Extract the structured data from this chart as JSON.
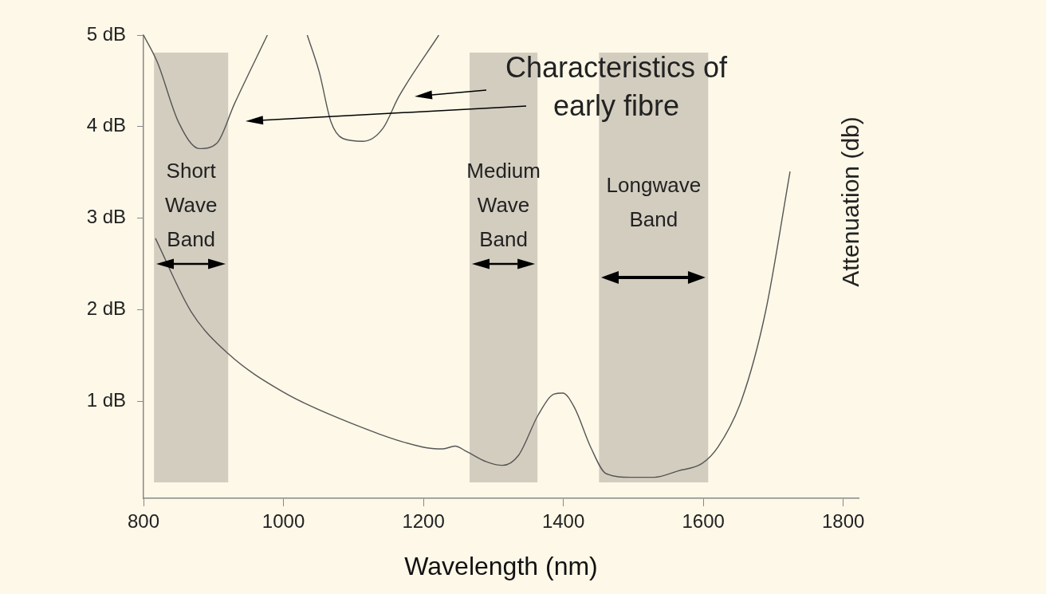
{
  "chart_data": {
    "type": "line",
    "xlabel": "Wavelength (nm)",
    "ylabel": "Attenuation (db)",
    "xlim": [
      800,
      1822
    ],
    "xticks": [
      800,
      1000,
      1200,
      1400,
      1600,
      1800
    ],
    "ylim": [
      -0.06,
      5
    ],
    "yticks": [
      {
        "value": 1,
        "label": "1 dB"
      },
      {
        "value": 2,
        "label": "2 dB"
      },
      {
        "value": 3,
        "label": "3 dB"
      },
      {
        "value": 4,
        "label": "4 dB"
      },
      {
        "value": 5,
        "label": "5 dB"
      }
    ],
    "grid": false,
    "legend": false,
    "marker": "none",
    "line_style": "solid",
    "series": [
      {
        "color": "#555555",
        "x": [
          800,
          820,
          850,
          880,
          905,
          930,
          977
        ],
        "values": [
          5.0,
          4.7,
          4.05,
          3.76,
          3.82,
          4.25,
          5.0
        ]
      },
      {
        "color": "#555555",
        "x": [
          1034,
          1051,
          1068,
          1085,
          1114,
          1142,
          1165,
          1222
        ],
        "values": [
          5.0,
          4.6,
          4.05,
          3.87,
          3.84,
          3.98,
          4.33,
          5.0
        ]
      },
      {
        "color": "#555555",
        "x": [
          817,
          868,
          921,
          1000,
          1097,
          1199,
          1228,
          1245,
          1262,
          1290,
          1313,
          1336,
          1364,
          1387,
          1399,
          1416,
          1439,
          1461,
          1496,
          1530,
          1564,
          1598,
          1621,
          1655,
          1689,
          1724
        ],
        "values": [
          2.78,
          1.98,
          1.52,
          1.1,
          0.76,
          0.5,
          0.48,
          0.51,
          0.45,
          0.34,
          0.3,
          0.41,
          0.85,
          1.08,
          1.09,
          0.93,
          0.5,
          0.21,
          0.17,
          0.17,
          0.24,
          0.32,
          0.5,
          1.02,
          1.98,
          3.51
        ]
      }
    ],
    "bands": [
      {
        "axis": "x",
        "from": 815,
        "to": 921,
        "label": "Short Wave Band",
        "color": "#d3cdc0"
      },
      {
        "axis": "x",
        "from": 1266,
        "to": 1363,
        "label": "Medium Wave Band",
        "color": "#d3cdc0"
      },
      {
        "axis": "x",
        "from": 1451,
        "to": 1607,
        "label": "Longwave Band",
        "color": "#d3cdc0"
      }
    ],
    "annotations": [
      "Characteristics of early fibre"
    ]
  }
}
